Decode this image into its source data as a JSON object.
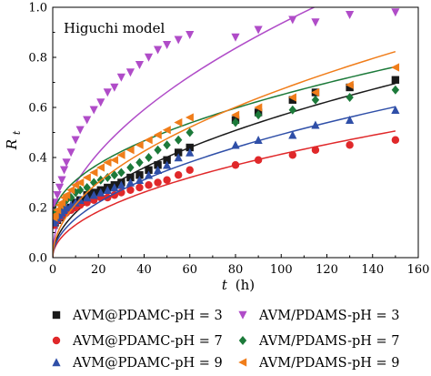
{
  "chart_data": {
    "type": "scatter",
    "annotation": "Higuchi model",
    "xlabel": {
      "main": "t",
      "unit": "(h)"
    },
    "ylabel": {
      "main": "R",
      "sub": "t"
    },
    "xlim": [
      0,
      160
    ],
    "ylim": [
      0,
      1.0
    ],
    "xticks": [
      "0",
      "20",
      "40",
      "60",
      "80",
      "100",
      "120",
      "140",
      "160"
    ],
    "yticks": [
      "0.0",
      "0.2",
      "0.4",
      "0.6",
      "0.8",
      "1.0"
    ],
    "grid": false,
    "legend_position": "bottom",
    "series": [
      {
        "name": "AVM@PDAMC-pH = 3",
        "marker": "square",
        "color": "#1a1a1a",
        "fit_k": 0.0568,
        "fit_b": 0.0,
        "x": [
          0.5,
          1,
          2,
          3,
          4,
          5,
          6,
          8,
          10,
          12,
          15,
          18,
          21,
          24,
          27,
          30,
          34,
          38,
          42,
          46,
          50,
          55,
          60,
          80,
          90,
          105,
          115,
          130,
          150
        ],
        "y": [
          0.13,
          0.14,
          0.15,
          0.16,
          0.17,
          0.18,
          0.19,
          0.2,
          0.22,
          0.23,
          0.25,
          0.26,
          0.27,
          0.28,
          0.29,
          0.3,
          0.32,
          0.33,
          0.35,
          0.37,
          0.39,
          0.42,
          0.44,
          0.55,
          0.58,
          0.63,
          0.66,
          0.68,
          0.71
        ]
      },
      {
        "name": "AVM/PDAMS-pH = 3",
        "marker": "triangle-down",
        "color": "#b04cc8",
        "fit_k": 0.0935,
        "fit_b": 0.0,
        "x": [
          0.5,
          1,
          2,
          3,
          4,
          5,
          6,
          8,
          10,
          12,
          15,
          18,
          21,
          24,
          27,
          30,
          34,
          38,
          42,
          46,
          50,
          55,
          60,
          80,
          90,
          105,
          115,
          130,
          150
        ],
        "y": [
          0.2,
          0.22,
          0.25,
          0.28,
          0.31,
          0.35,
          0.38,
          0.42,
          0.47,
          0.51,
          0.55,
          0.59,
          0.62,
          0.66,
          0.68,
          0.72,
          0.74,
          0.77,
          0.8,
          0.83,
          0.85,
          0.87,
          0.89,
          0.88,
          0.91,
          0.95,
          0.94,
          0.97,
          0.98
        ]
      },
      {
        "name": "AVM@PDAMC-pH = 7",
        "marker": "circle",
        "color": "#e0282a",
        "fit_k": 0.0413,
        "fit_b": 0.0,
        "x": [
          0.5,
          1,
          2,
          3,
          4,
          5,
          6,
          8,
          10,
          12,
          15,
          18,
          21,
          24,
          27,
          30,
          34,
          38,
          42,
          46,
          50,
          55,
          60,
          80,
          90,
          105,
          115,
          130,
          150
        ],
        "y": [
          0.13,
          0.14,
          0.15,
          0.16,
          0.17,
          0.18,
          0.18,
          0.19,
          0.2,
          0.21,
          0.22,
          0.23,
          0.24,
          0.24,
          0.25,
          0.26,
          0.27,
          0.28,
          0.29,
          0.3,
          0.31,
          0.33,
          0.35,
          0.37,
          0.39,
          0.41,
          0.43,
          0.45,
          0.47
        ]
      },
      {
        "name": "AVM/PDAMS-pH = 7",
        "marker": "diamond",
        "color": "#1c7a3a",
        "fit_k": 0.05,
        "fit_b": 0.15,
        "x": [
          0.5,
          1,
          2,
          3,
          4,
          5,
          6,
          8,
          10,
          12,
          15,
          18,
          21,
          24,
          27,
          30,
          34,
          38,
          42,
          46,
          50,
          55,
          60,
          80,
          90,
          105,
          115,
          130,
          150
        ],
        "y": [
          0.15,
          0.16,
          0.18,
          0.19,
          0.21,
          0.22,
          0.23,
          0.24,
          0.26,
          0.27,
          0.28,
          0.3,
          0.31,
          0.32,
          0.33,
          0.34,
          0.36,
          0.38,
          0.4,
          0.43,
          0.45,
          0.47,
          0.5,
          0.54,
          0.57,
          0.59,
          0.63,
          0.64,
          0.67
        ]
      },
      {
        "name": "AVM@PDAMC-pH = 9",
        "marker": "triangle-up",
        "color": "#2f4fa8",
        "fit_k": 0.0492,
        "fit_b": 0.0,
        "x": [
          0.5,
          1,
          2,
          3,
          4,
          5,
          6,
          8,
          10,
          12,
          15,
          18,
          21,
          24,
          27,
          30,
          34,
          38,
          42,
          46,
          50,
          55,
          60,
          80,
          90,
          105,
          115,
          130,
          150
        ],
        "y": [
          0.14,
          0.15,
          0.16,
          0.17,
          0.18,
          0.19,
          0.2,
          0.21,
          0.22,
          0.23,
          0.24,
          0.25,
          0.26,
          0.27,
          0.28,
          0.29,
          0.3,
          0.31,
          0.33,
          0.35,
          0.37,
          0.4,
          0.42,
          0.45,
          0.47,
          0.49,
          0.53,
          0.55,
          0.59
        ]
      },
      {
        "name": "AVM/PDAMS-pH = 9",
        "marker": "triangle-left",
        "color": "#f07d1a",
        "fit_k": 0.0672,
        "fit_b": 0.0,
        "x": [
          0.5,
          1,
          2,
          3,
          4,
          5,
          6,
          8,
          10,
          12,
          15,
          18,
          21,
          24,
          27,
          30,
          34,
          38,
          42,
          46,
          50,
          55,
          60,
          80,
          90,
          105,
          115,
          130,
          150
        ],
        "y": [
          0.16,
          0.17,
          0.19,
          0.21,
          0.22,
          0.24,
          0.25,
          0.27,
          0.29,
          0.3,
          0.32,
          0.34,
          0.36,
          0.38,
          0.39,
          0.41,
          0.43,
          0.45,
          0.47,
          0.49,
          0.51,
          0.54,
          0.56,
          0.57,
          0.6,
          0.64,
          0.66,
          0.69,
          0.76
        ]
      }
    ]
  }
}
